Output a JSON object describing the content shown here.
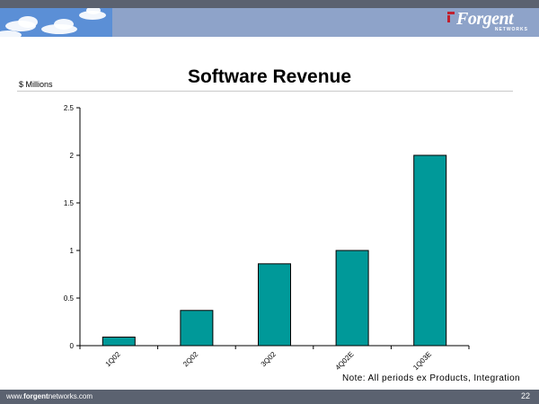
{
  "header": {
    "logo_text": "Forgent",
    "logo_subtext": "NETWORKS"
  },
  "slide": {
    "title": "Software Revenue",
    "units_label": "$ Millions",
    "note": "Note: All periods ex Products, Integration"
  },
  "colors": {
    "bar": "#009999",
    "banner": "#8ea3c9",
    "bars_border": "#000000"
  },
  "chart_data": {
    "type": "bar",
    "title": "Software Revenue",
    "ylabel": "$ Millions",
    "xlabel": "",
    "categories": [
      "1Q02",
      "2Q02",
      "3Q02",
      "4Q02E",
      "1Q03E"
    ],
    "values": [
      0.09,
      0.37,
      0.86,
      1.0,
      2.0
    ],
    "ylim": [
      0,
      2.5
    ],
    "yticks": [
      "0",
      "0.5",
      "1",
      "1.5",
      "2",
      "2.5"
    ],
    "grid": false,
    "legend": "none"
  },
  "footer": {
    "url_prefix": "www.",
    "url_brand": "forgent",
    "url_suffix": "networks.com",
    "page_number": "22"
  }
}
